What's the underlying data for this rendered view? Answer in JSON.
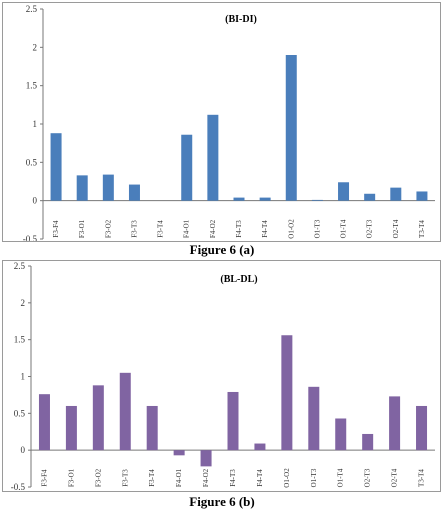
{
  "chart_data": [
    {
      "type": "bar",
      "title": "(BI-DI)",
      "caption": "Figure 6 (a)",
      "color": "#4a7ebb",
      "ylim": [
        -0.5,
        2.5
      ],
      "yticks": [
        "-0.5",
        "0",
        "0.5",
        "1",
        "1.5",
        "2",
        "2.5"
      ],
      "grid": false,
      "categories": [
        "F3-F4",
        "F3-O1",
        "F3-O2",
        "F3-T3",
        "F3-T4",
        "F4-O1",
        "F4-O2",
        "F4-T3",
        "F4-T4",
        "O1-O2",
        "O1-T3",
        "O1-T4",
        "O2-T3",
        "O2-T4",
        "T3-T4"
      ],
      "values": [
        0.88,
        0.33,
        0.34,
        0.21,
        0.0,
        0.86,
        1.12,
        0.04,
        0.04,
        1.9,
        0.01,
        0.24,
        0.09,
        0.17,
        0.12
      ]
    },
    {
      "type": "bar",
      "title": "(BL-DL)",
      "caption": "Figure 6 (b)",
      "color": "#8064a2",
      "ylim": [
        -0.5,
        2.5
      ],
      "yticks": [
        "-0.5",
        "0",
        "0.5",
        "1",
        "1.5",
        "2",
        "2.5"
      ],
      "grid": false,
      "categories": [
        "F3-F4",
        "F3-O1",
        "F3-O2",
        "F3-T3",
        "F3-T4",
        "F4-O1",
        "F4-O2",
        "F4-T3",
        "F4-T4",
        "O1-O2",
        "O1-T3",
        "O1-T4",
        "O2-T3",
        "O2-T4",
        "T3-T4"
      ],
      "values": [
        0.76,
        0.6,
        0.88,
        1.05,
        0.6,
        -0.07,
        -0.22,
        0.79,
        0.09,
        1.56,
        0.86,
        0.43,
        0.22,
        0.73,
        0.6
      ]
    }
  ]
}
